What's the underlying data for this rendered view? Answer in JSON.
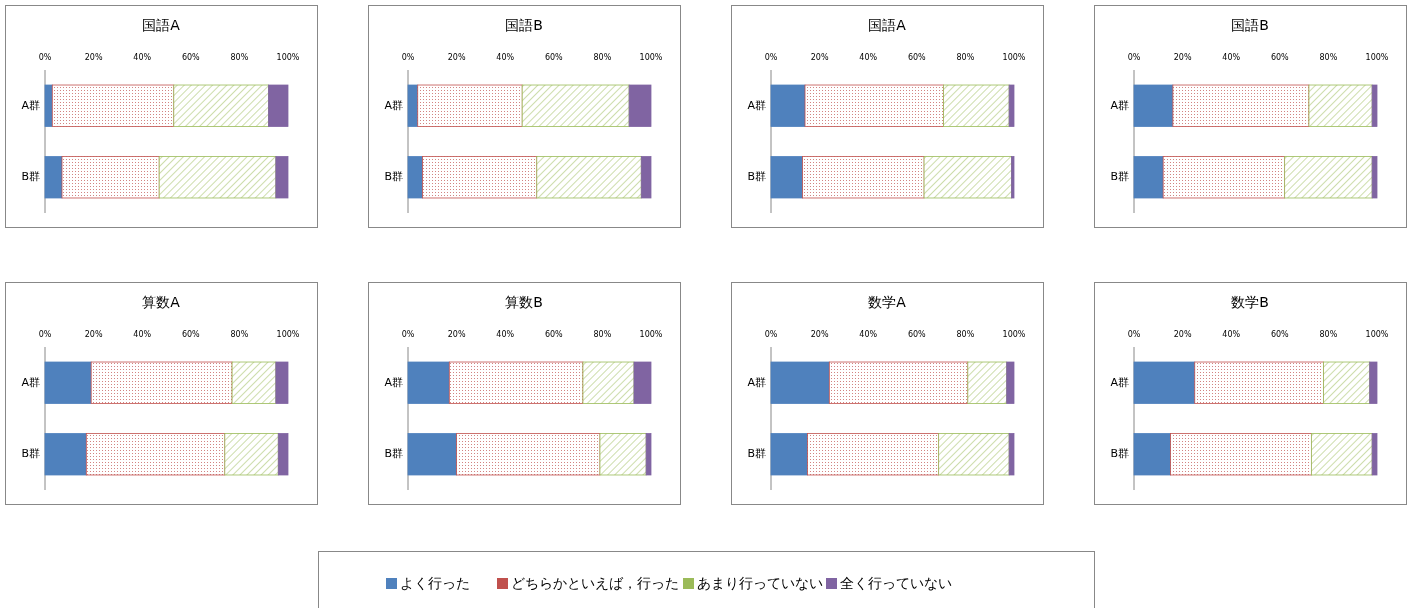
{
  "chart_data": [
    {
      "type": "bar",
      "orientation": "horizontal",
      "stacked": true,
      "title": "国語A",
      "categories": [
        "A群",
        "B群"
      ],
      "xlim": [
        0,
        100
      ],
      "xticks": [
        {
          "value": 0,
          "label": "0%"
        },
        {
          "value": 20,
          "label": "20%"
        },
        {
          "value": 40,
          "label": "40%"
        },
        {
          "value": 60,
          "label": "60%"
        },
        {
          "value": 80,
          "label": "80%"
        },
        {
          "value": 100,
          "label": "100%"
        }
      ],
      "legend": "bottom",
      "series": [
        {
          "name": "よく行った",
          "color": "#4f81bd",
          "values": [
            3,
            7
          ]
        },
        {
          "name": "どちらかといえば，行った",
          "color": "#c0504d",
          "values": [
            50,
            40
          ]
        },
        {
          "name": "あまり行っていない",
          "color": "#9bbb59",
          "values": [
            39,
            48
          ]
        },
        {
          "name": "全く行っていない",
          "color": "#8064a2",
          "values": [
            8,
            5
          ]
        }
      ]
    },
    {
      "type": "bar",
      "orientation": "horizontal",
      "stacked": true,
      "title": "国語B",
      "categories": [
        "A群",
        "B群"
      ],
      "xlim": [
        0,
        100
      ],
      "xticks": [
        {
          "value": 0,
          "label": "0%"
        },
        {
          "value": 20,
          "label": "20%"
        },
        {
          "value": 40,
          "label": "40%"
        },
        {
          "value": 60,
          "label": "60%"
        },
        {
          "value": 80,
          "label": "80%"
        },
        {
          "value": 100,
          "label": "100%"
        }
      ],
      "series": [
        {
          "color": "#4f81bd",
          "values": [
            4,
            6
          ]
        },
        {
          "color": "#c0504d",
          "values": [
            43,
            47
          ]
        },
        {
          "color": "#9bbb59",
          "values": [
            44,
            43
          ]
        },
        {
          "color": "#8064a2",
          "values": [
            9,
            4
          ]
        }
      ]
    },
    {
      "type": "bar",
      "orientation": "horizontal",
      "stacked": true,
      "title": "国語A",
      "categories": [
        "A群",
        "B群"
      ],
      "xlim": [
        0,
        100
      ],
      "xticks": [
        {
          "value": 0,
          "label": "0%"
        },
        {
          "value": 20,
          "label": "20%"
        },
        {
          "value": 40,
          "label": "40%"
        },
        {
          "value": 60,
          "label": "60%"
        },
        {
          "value": 80,
          "label": "80%"
        },
        {
          "value": 100,
          "label": "100%"
        }
      ],
      "series": [
        {
          "color": "#4f81bd",
          "values": [
            14,
            13
          ]
        },
        {
          "color": "#c0504d",
          "values": [
            57,
            50
          ]
        },
        {
          "color": "#9bbb59",
          "values": [
            27,
            36
          ]
        },
        {
          "color": "#8064a2",
          "values": [
            2,
            1
          ]
        }
      ]
    },
    {
      "type": "bar",
      "orientation": "horizontal",
      "stacked": true,
      "title": "国語B",
      "categories": [
        "A群",
        "B群"
      ],
      "xlim": [
        0,
        100
      ],
      "xticks": [
        {
          "value": 0,
          "label": "0%"
        },
        {
          "value": 20,
          "label": "20%"
        },
        {
          "value": 40,
          "label": "40%"
        },
        {
          "value": 60,
          "label": "60%"
        },
        {
          "value": 80,
          "label": "80%"
        },
        {
          "value": 100,
          "label": "100%"
        }
      ],
      "series": [
        {
          "color": "#4f81bd",
          "values": [
            16,
            12
          ]
        },
        {
          "color": "#c0504d",
          "values": [
            56,
            50
          ]
        },
        {
          "color": "#9bbb59",
          "values": [
            26,
            36
          ]
        },
        {
          "color": "#8064a2",
          "values": [
            2,
            2
          ]
        }
      ]
    },
    {
      "type": "bar",
      "orientation": "horizontal",
      "stacked": true,
      "title": "算数A",
      "categories": [
        "A群",
        "B群"
      ],
      "xlim": [
        0,
        100
      ],
      "xticks": [
        {
          "value": 0,
          "label": "0%"
        },
        {
          "value": 20,
          "label": "20%"
        },
        {
          "value": 40,
          "label": "40%"
        },
        {
          "value": 60,
          "label": "60%"
        },
        {
          "value": 80,
          "label": "80%"
        },
        {
          "value": 100,
          "label": "100%"
        }
      ],
      "series": [
        {
          "color": "#4f81bd",
          "values": [
            19,
            17
          ]
        },
        {
          "color": "#c0504d",
          "values": [
            58,
            57
          ]
        },
        {
          "color": "#9bbb59",
          "values": [
            18,
            22
          ]
        },
        {
          "color": "#8064a2",
          "values": [
            5,
            4
          ]
        }
      ]
    },
    {
      "type": "bar",
      "orientation": "horizontal",
      "stacked": true,
      "title": "算数B",
      "categories": [
        "A群",
        "B群"
      ],
      "xlim": [
        0,
        100
      ],
      "xticks": [
        {
          "value": 0,
          "label": "0%"
        },
        {
          "value": 20,
          "label": "20%"
        },
        {
          "value": 40,
          "label": "40%"
        },
        {
          "value": 60,
          "label": "60%"
        },
        {
          "value": 80,
          "label": "80%"
        },
        {
          "value": 100,
          "label": "100%"
        }
      ],
      "series": [
        {
          "color": "#4f81bd",
          "values": [
            17,
            20
          ]
        },
        {
          "color": "#c0504d",
          "values": [
            55,
            59
          ]
        },
        {
          "color": "#9bbb59",
          "values": [
            21,
            19
          ]
        },
        {
          "color": "#8064a2",
          "values": [
            7,
            2
          ]
        }
      ]
    },
    {
      "type": "bar",
      "orientation": "horizontal",
      "stacked": true,
      "title": "数学A",
      "categories": [
        "A群",
        "B群"
      ],
      "xlim": [
        0,
        100
      ],
      "xticks": [
        {
          "value": 0,
          "label": "0%"
        },
        {
          "value": 20,
          "label": "20%"
        },
        {
          "value": 40,
          "label": "40%"
        },
        {
          "value": 60,
          "label": "60%"
        },
        {
          "value": 80,
          "label": "80%"
        },
        {
          "value": 100,
          "label": "100%"
        }
      ],
      "series": [
        {
          "color": "#4f81bd",
          "values": [
            24,
            15
          ]
        },
        {
          "color": "#c0504d",
          "values": [
            57,
            54
          ]
        },
        {
          "color": "#9bbb59",
          "values": [
            16,
            29
          ]
        },
        {
          "color": "#8064a2",
          "values": [
            3,
            2
          ]
        }
      ]
    },
    {
      "type": "bar",
      "orientation": "horizontal",
      "stacked": true,
      "title": "数学B",
      "categories": [
        "A群",
        "B群"
      ],
      "xlim": [
        0,
        100
      ],
      "xticks": [
        {
          "value": 0,
          "label": "0%"
        },
        {
          "value": 20,
          "label": "20%"
        },
        {
          "value": 40,
          "label": "40%"
        },
        {
          "value": 60,
          "label": "60%"
        },
        {
          "value": 80,
          "label": "80%"
        },
        {
          "value": 100,
          "label": "100%"
        }
      ],
      "series": [
        {
          "color": "#4f81bd",
          "values": [
            25,
            15
          ]
        },
        {
          "color": "#c0504d",
          "values": [
            53,
            58
          ]
        },
        {
          "color": "#9bbb59",
          "values": [
            19,
            25
          ]
        },
        {
          "color": "#8064a2",
          "values": [
            3,
            2
          ]
        }
      ]
    }
  ]
}
